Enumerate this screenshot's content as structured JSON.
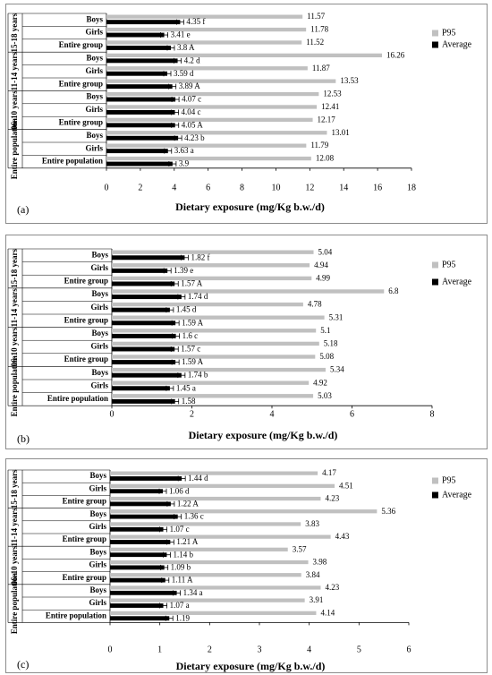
{
  "chart_data": [
    {
      "type": "bar",
      "panel_label": "(a)",
      "xlabel": "Dietary exposure (mg/Kg b.w./d)",
      "xlim": [
        0,
        18
      ],
      "xticks": [
        "0",
        "2",
        "4",
        "6",
        "8",
        "10",
        "12",
        "14",
        "16",
        "18"
      ],
      "legend": [
        "P95",
        "Average"
      ],
      "legend_position": "right",
      "groups": [
        {
          "label": "15-18 years",
          "categories": [
            "Boys",
            "Girls",
            "Entire group"
          ]
        },
        {
          "label": "11-14 years",
          "categories": [
            "Boys",
            "Girls",
            "Entire group"
          ]
        },
        {
          "label": "06-10 years",
          "categories": [
            "Boys",
            "Girls",
            "Entire group"
          ]
        },
        {
          "label": "Entire population",
          "categories": [
            "Boys",
            "Girls",
            "Entire population"
          ]
        }
      ],
      "series": [
        {
          "name": "P95",
          "values": [
            11.57,
            11.78,
            11.52,
            16.26,
            11.87,
            13.53,
            12.53,
            12.41,
            12.17,
            13.01,
            11.79,
            12.08
          ],
          "labels": [
            "11.57",
            "11.78",
            "11.52",
            "16.26",
            "11.87",
            "13.53",
            "12.53",
            "12.41",
            "12.17",
            "13.01",
            "11.79",
            "12.08"
          ]
        },
        {
          "name": "Average",
          "values": [
            4.35,
            3.41,
            3.8,
            4.2,
            3.59,
            3.89,
            4.07,
            4.04,
            4.05,
            4.23,
            3.63,
            3.9
          ],
          "labels": [
            "4.35 f",
            "3.41 e",
            "3.8 A",
            "4.2 d",
            "3.59 d",
            "3.89 A",
            "4.07 c",
            "4.04 c",
            "4.05 A",
            "4.23 b",
            "3.63 a",
            "3.9"
          ]
        }
      ],
      "colors": {
        "p95": "#c0c0c0",
        "average": "#000000"
      }
    },
    {
      "type": "bar",
      "panel_label": "(b)",
      "xlabel": "Dietary exposure (mg/Kg b.w./d)",
      "xlim": [
        0,
        8
      ],
      "xticks": [
        "0",
        "2",
        "4",
        "6",
        "8"
      ],
      "legend": [
        "P95",
        "Average"
      ],
      "legend_position": "right",
      "groups": [
        {
          "label": "15-18 years",
          "categories": [
            "Boys",
            "Girls",
            "Entire group"
          ]
        },
        {
          "label": "11-14 years",
          "categories": [
            "Boys",
            "Girls",
            "Entire group"
          ]
        },
        {
          "label": "06-10 years",
          "categories": [
            "Boys",
            "Girls",
            "Entire group"
          ]
        },
        {
          "label": "Entire population",
          "categories": [
            "Boys",
            "Girls",
            "Entire population"
          ]
        }
      ],
      "series": [
        {
          "name": "P95",
          "values": [
            5.04,
            4.94,
            4.99,
            6.8,
            4.78,
            5.31,
            5.1,
            5.18,
            5.08,
            5.34,
            4.92,
            5.03
          ],
          "labels": [
            "5.04",
            "4.94",
            "4.99",
            "6.8",
            "4.78",
            "5.31",
            "5.1",
            "5.18",
            "5.08",
            "5.34",
            "4.92",
            "5.03"
          ]
        },
        {
          "name": "Average",
          "values": [
            1.82,
            1.39,
            1.57,
            1.74,
            1.45,
            1.59,
            1.6,
            1.57,
            1.59,
            1.74,
            1.45,
            1.58
          ],
          "labels": [
            "1.82 f",
            "1.39 e",
            "1.57 A",
            "1.74 d",
            "1.45 d",
            "1.59 A",
            "1.6 c",
            "1.57 c",
            "1.59 A",
            "1.74 b",
            "1.45 a",
            "1.58"
          ]
        }
      ],
      "colors": {
        "p95": "#c0c0c0",
        "average": "#000000"
      }
    },
    {
      "type": "bar",
      "panel_label": "(c)",
      "xlabel": "Dietary exposure (mg/Kg b.w./d)",
      "xlim": [
        0,
        6
      ],
      "xticks": [
        "0",
        "1",
        "2",
        "3",
        "4",
        "5",
        "6"
      ],
      "legend": [
        "P95",
        "Average"
      ],
      "legend_position": "right",
      "groups": [
        {
          "label": "15-18 years",
          "categories": [
            "Boys",
            "Girls",
            "Entire group"
          ]
        },
        {
          "label": "11-14 years",
          "categories": [
            "Boys",
            "Girls",
            "Entire group"
          ]
        },
        {
          "label": "06-10 years",
          "categories": [
            "Boys",
            "Girls",
            "Entire group"
          ]
        },
        {
          "label": "Entire population",
          "categories": [
            "Boys",
            "Girls",
            "Entire population"
          ]
        }
      ],
      "series": [
        {
          "name": "P95",
          "values": [
            4.17,
            4.51,
            4.23,
            5.36,
            3.83,
            4.43,
            3.57,
            3.98,
            3.84,
            4.23,
            3.91,
            4.14
          ],
          "labels": [
            "4.17",
            "4.51",
            "4.23",
            "5.36",
            "3.83",
            "4.43",
            "3.57",
            "3.98",
            "3.84",
            "4.23",
            "3.91",
            "4.14"
          ]
        },
        {
          "name": "Average",
          "values": [
            1.44,
            1.06,
            1.22,
            1.36,
            1.07,
            1.21,
            1.14,
            1.09,
            1.11,
            1.34,
            1.07,
            1.19
          ],
          "labels": [
            "1.44 d",
            "1.06 d",
            "1.22 A",
            "1.36 c",
            "1.07 c",
            "1.21 A",
            "1.14 b",
            "1.09 b",
            "1.11 A",
            "1.34 a",
            "1.07 a",
            "1.19"
          ]
        }
      ],
      "colors": {
        "p95": "#c0c0c0",
        "average": "#000000"
      }
    }
  ]
}
